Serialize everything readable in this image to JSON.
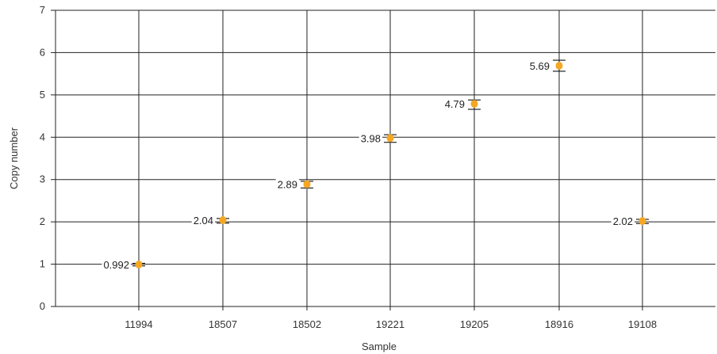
{
  "chart_data": {
    "type": "scatter",
    "title": "",
    "xlabel": "Sample",
    "ylabel": "Copy number",
    "categories": [
      "11994",
      "18507",
      "18502",
      "19221",
      "19205",
      "18916",
      "19108"
    ],
    "values": [
      0.992,
      2.04,
      2.89,
      3.98,
      4.79,
      5.69,
      2.02
    ],
    "value_labels": [
      "0.992",
      "2.04",
      "2.89",
      "3.98",
      "4.79",
      "5.69",
      "2.02"
    ],
    "error_low": [
      0.96,
      1.97,
      2.8,
      3.88,
      4.66,
      5.56,
      1.96
    ],
    "error_high": [
      1.02,
      2.08,
      2.96,
      4.06,
      4.88,
      5.82,
      2.06
    ],
    "ylim": [
      0,
      7
    ],
    "yticks": [
      "0",
      "1",
      "2",
      "3",
      "4",
      "5",
      "6",
      "7"
    ],
    "grid": true,
    "marker_color": "#f5a623"
  }
}
